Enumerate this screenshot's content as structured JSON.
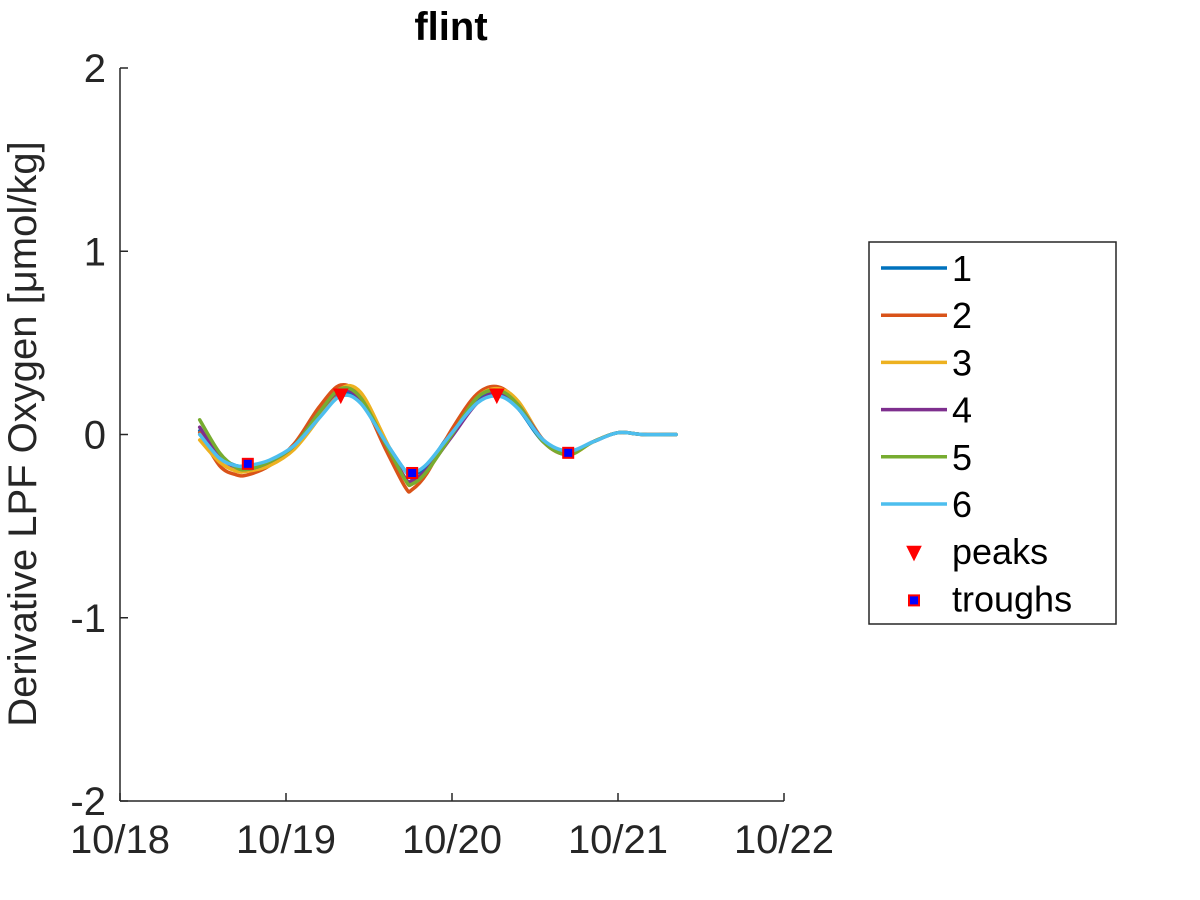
{
  "chart_data": {
    "type": "line",
    "title": "flint",
    "xlabel": "",
    "ylabel": "Derivative LPF Oxygen [μmol/kg]",
    "xlim": [
      0,
      4
    ],
    "ylim": [
      -2,
      2
    ],
    "x_ticks": [
      0,
      1,
      2,
      3,
      4
    ],
    "x_tick_labels": [
      "10/18",
      "10/19",
      "10/20",
      "10/21",
      "10/22"
    ],
    "y_ticks": [
      -2,
      -1,
      0,
      1,
      2
    ],
    "y_tick_labels": [
      "-2",
      "-1",
      "0",
      "1",
      "2"
    ],
    "grid": false,
    "legend_position": "outside-right",
    "series": [
      {
        "name": "1",
        "color": "#0072BD",
        "x": [
          0.48,
          0.6,
          0.7,
          0.77,
          0.9,
          1.05,
          1.2,
          1.33,
          1.45,
          1.6,
          1.72,
          1.76,
          1.85,
          2.0,
          2.15,
          2.28,
          2.4,
          2.55,
          2.7,
          2.85,
          3.0,
          3.15,
          3.35
        ],
        "y": [
          0.02,
          -0.12,
          -0.17,
          -0.17,
          -0.15,
          -0.07,
          0.1,
          0.22,
          0.18,
          -0.04,
          -0.2,
          -0.22,
          -0.17,
          0.02,
          0.19,
          0.22,
          0.14,
          -0.04,
          -0.1,
          -0.04,
          0.01,
          0.0,
          0.0
        ]
      },
      {
        "name": "2",
        "color": "#D95319",
        "x": [
          0.48,
          0.6,
          0.7,
          0.77,
          0.9,
          1.05,
          1.2,
          1.33,
          1.45,
          1.6,
          1.72,
          1.76,
          1.85,
          2.0,
          2.15,
          2.28,
          2.4,
          2.55,
          2.7,
          2.85,
          3.0,
          3.15,
          3.35
        ],
        "y": [
          0.01,
          -0.17,
          -0.22,
          -0.22,
          -0.17,
          -0.05,
          0.15,
          0.27,
          0.2,
          -0.08,
          -0.29,
          -0.3,
          -0.21,
          0.03,
          0.22,
          0.26,
          0.17,
          -0.04,
          -0.11,
          -0.04,
          0.01,
          0.0,
          0.0
        ]
      },
      {
        "name": "3",
        "color": "#EDB120",
        "x": [
          0.48,
          0.6,
          0.7,
          0.77,
          0.9,
          1.05,
          1.2,
          1.33,
          1.45,
          1.6,
          1.72,
          1.76,
          1.85,
          2.0,
          2.15,
          2.28,
          2.4,
          2.55,
          2.7,
          2.85,
          3.0,
          3.15,
          3.35
        ],
        "y": [
          -0.03,
          -0.15,
          -0.2,
          -0.2,
          -0.17,
          -0.08,
          0.09,
          0.25,
          0.23,
          -0.03,
          -0.25,
          -0.27,
          -0.2,
          0.0,
          0.2,
          0.25,
          0.18,
          -0.03,
          -0.11,
          -0.04,
          0.01,
          0.0,
          0.0
        ]
      },
      {
        "name": "4",
        "color": "#7E2F8E",
        "x": [
          0.48,
          0.6,
          0.7,
          0.77,
          0.9,
          1.05,
          1.2,
          1.33,
          1.45,
          1.6,
          1.72,
          1.76,
          1.85,
          2.0,
          2.15,
          2.28,
          2.4,
          2.55,
          2.7,
          2.85,
          3.0,
          3.15,
          3.35
        ],
        "y": [
          0.04,
          -0.12,
          -0.18,
          -0.19,
          -0.15,
          -0.06,
          0.12,
          0.24,
          0.19,
          -0.05,
          -0.24,
          -0.25,
          -0.19,
          -0.01,
          0.17,
          0.23,
          0.16,
          -0.03,
          -0.1,
          -0.04,
          0.01,
          0.0,
          0.0
        ]
      },
      {
        "name": "5",
        "color": "#77AC30",
        "x": [
          0.48,
          0.6,
          0.7,
          0.77,
          0.9,
          1.05,
          1.2,
          1.33,
          1.45,
          1.6,
          1.72,
          1.76,
          1.85,
          2.0,
          2.15,
          2.28,
          2.4,
          2.55,
          2.7,
          2.85,
          3.0,
          3.15,
          3.35
        ],
        "y": [
          0.08,
          -0.1,
          -0.18,
          -0.19,
          -0.15,
          -0.06,
          0.12,
          0.25,
          0.2,
          -0.05,
          -0.25,
          -0.27,
          -0.2,
          0.0,
          0.2,
          0.24,
          0.16,
          -0.04,
          -0.11,
          -0.04,
          0.01,
          0.0,
          0.0
        ]
      },
      {
        "name": "6",
        "color": "#4DBEEE",
        "x": [
          0.48,
          0.6,
          0.7,
          0.77,
          0.9,
          1.05,
          1.2,
          1.33,
          1.45,
          1.6,
          1.72,
          1.76,
          1.85,
          2.0,
          2.15,
          2.28,
          2.4,
          2.55,
          2.7,
          2.85,
          3.0,
          3.15,
          3.35
        ],
        "y": [
          0.0,
          -0.13,
          -0.17,
          -0.17,
          -0.14,
          -0.06,
          0.09,
          0.21,
          0.17,
          -0.04,
          -0.2,
          -0.21,
          -0.16,
          0.01,
          0.17,
          0.21,
          0.14,
          -0.03,
          -0.09,
          -0.04,
          0.01,
          0.0,
          0.0
        ]
      }
    ],
    "markers": [
      {
        "name": "peaks",
        "shape": "triangle-down",
        "color": "#FF0000",
        "x": [
          1.33,
          2.27
        ],
        "y": [
          0.21,
          0.21
        ]
      },
      {
        "name": "troughs",
        "shape": "square",
        "color": "#0000FF",
        "edge_color": "#FF0000",
        "x": [
          0.77,
          1.76,
          2.7
        ],
        "y": [
          -0.16,
          -0.21,
          -0.1
        ]
      }
    ]
  }
}
